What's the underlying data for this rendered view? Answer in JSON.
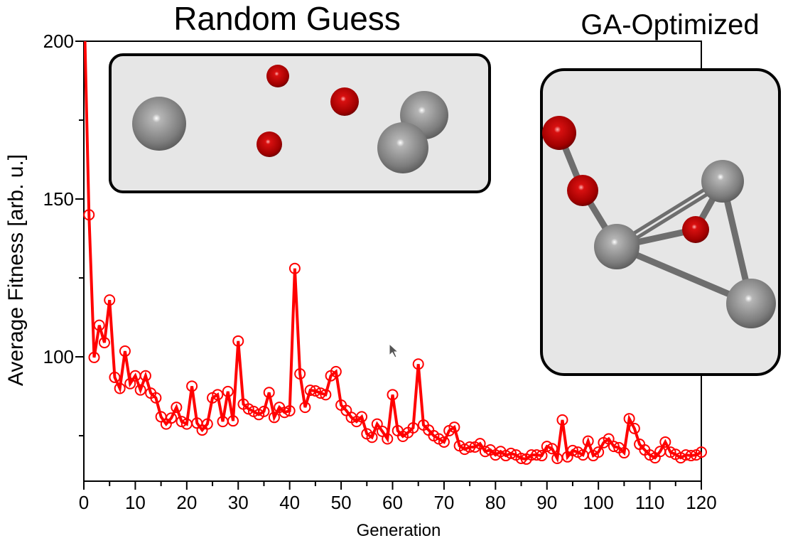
{
  "chart_data": {
    "type": "line",
    "title_left": "Random Guess",
    "title_right": "GA-Optimized",
    "xlabel": "Generation",
    "ylabel": "Average Fitness [arb. u.]",
    "xlim": [
      0,
      120
    ],
    "ylim": [
      60.6,
      200
    ],
    "xticks": [
      0,
      10,
      20,
      30,
      40,
      50,
      60,
      70,
      80,
      90,
      100,
      110,
      120
    ],
    "xtick_labels": [
      "0",
      "10",
      "20",
      "30",
      "40",
      "50",
      "60",
      "70",
      "80",
      "90",
      "100",
      "110",
      "120"
    ],
    "xminor": [
      5,
      15,
      25,
      35,
      45,
      55,
      65,
      75,
      85,
      95,
      105,
      115
    ],
    "yticks": [
      200,
      150,
      100
    ],
    "ytick_labels": [
      "200",
      "150",
      "100"
    ],
    "yminor": [
      175,
      125,
      75
    ],
    "grid": false,
    "series": [
      {
        "name": "Average Fitness",
        "color": "#ff0000",
        "x": [
          0,
          1,
          2,
          3,
          4,
          5,
          6,
          7,
          8,
          9,
          10,
          11,
          12,
          13,
          14,
          15,
          16,
          17,
          18,
          19,
          20,
          21,
          22,
          23,
          24,
          25,
          26,
          27,
          28,
          29,
          30,
          31,
          32,
          33,
          34,
          35,
          36,
          37,
          38,
          39,
          40,
          41,
          42,
          43,
          44,
          45,
          46,
          47,
          48,
          49,
          50,
          51,
          52,
          53,
          54,
          55,
          56,
          57,
          58,
          59,
          60,
          61,
          62,
          63,
          64,
          65,
          66,
          67,
          68,
          69,
          70,
          71,
          72,
          73,
          74,
          75,
          76,
          77,
          78,
          79,
          80,
          81,
          82,
          83,
          84,
          85,
          86,
          87,
          88,
          89,
          90,
          91,
          92,
          93,
          94,
          95,
          96,
          97,
          98,
          99,
          100,
          101,
          102,
          103,
          104,
          105,
          106,
          107,
          108,
          109,
          110,
          111,
          112,
          113,
          114,
          115,
          116,
          117,
          118,
          119,
          120
        ],
        "values": [
          215,
          145,
          99.8,
          110,
          104.5,
          118,
          93.5,
          90,
          101.8,
          91.5,
          94,
          89.5,
          94,
          88.5,
          87,
          81,
          78.7,
          80.6,
          84,
          79.5,
          78.7,
          90.7,
          79,
          76.8,
          78.7,
          87,
          88,
          79.5,
          89,
          79.7,
          105,
          85,
          83.5,
          82.7,
          81.7,
          82.7,
          88.7,
          80.8,
          84,
          82.4,
          82.9,
          128,
          94.6,
          84,
          89.4,
          89.2,
          88.5,
          88,
          94,
          95.3,
          84.7,
          83,
          80.8,
          79.5,
          81,
          75.6,
          74.5,
          78.7,
          76.4,
          74,
          88,
          76.6,
          74.8,
          76,
          77.5,
          97.7,
          78.4,
          76.8,
          75,
          74,
          73,
          76.6,
          77.7,
          71.8,
          70.7,
          71.4,
          71.4,
          72.5,
          70,
          70.5,
          68.9,
          70,
          68.7,
          69.4,
          68.9,
          67.8,
          67.6,
          68.9,
          68.9,
          68.7,
          71.6,
          70.9,
          67.8,
          80,
          68.3,
          70.3,
          69.8,
          68.9,
          73.3,
          68.7,
          69.8,
          72.8,
          74,
          71.6,
          71.2,
          69.6,
          80.4,
          77.3,
          72.3,
          70.5,
          68.9,
          68,
          70,
          73,
          69.8,
          69.1,
          68,
          68.9,
          68.7,
          68.9,
          69.8
        ]
      }
    ]
  },
  "colors": {
    "line": "#ff0000",
    "inset_bg": "#e6e6e6",
    "atom_gray": "#8c8c8c",
    "atom_red": "#c00000"
  }
}
